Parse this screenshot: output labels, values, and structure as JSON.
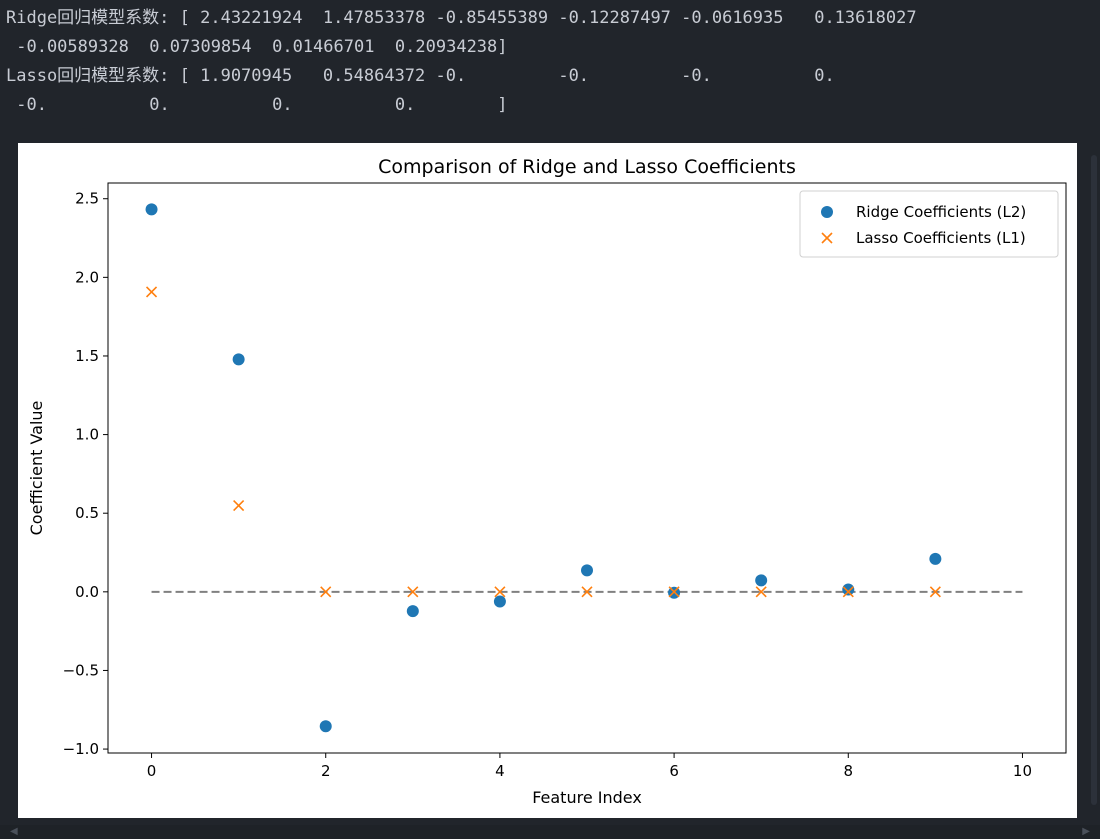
{
  "console": {
    "lines": [
      "Ridge回归模型系数: [ 2.43221924  1.47853378 -0.85455389 -0.12287497 -0.0616935   0.13618027",
      " -0.00589328  0.07309854  0.01466701  0.20934238]",
      "Lasso回归模型系数: [ 1.9070945   0.54864372 -0.         -0.         -0.          0.",
      " -0.          0.          0.          0.        ]"
    ]
  },
  "chart_data": {
    "type": "scatter",
    "title": "Comparison of Ridge and Lasso Coefficients",
    "xlabel": "Feature Index",
    "ylabel": "Coefficient Value",
    "xlim": [
      -0.5,
      10.5
    ],
    "ylim": [
      -1.025,
      2.6
    ],
    "xticks": [
      0,
      2,
      4,
      6,
      8,
      10
    ],
    "xtick_labels": [
      "0",
      "2",
      "4",
      "6",
      "8",
      "10"
    ],
    "yticks": [
      -1.0,
      -0.5,
      0.0,
      0.5,
      1.0,
      1.5,
      2.0,
      2.5
    ],
    "ytick_labels": [
      "−1.0",
      "−0.5",
      "0.0",
      "0.5",
      "1.0",
      "1.5",
      "2.0",
      "2.5"
    ],
    "grid": false,
    "legend_position": "top-right",
    "reference_line": {
      "y": 0,
      "x": [
        0,
        10
      ],
      "style": "dashed",
      "color": "#808080"
    },
    "series": [
      {
        "name": "Ridge Coefficients (L2)",
        "marker": "circle",
        "color": "#1f77b4",
        "x": [
          0,
          1,
          2,
          3,
          4,
          5,
          6,
          7,
          8,
          9
        ],
        "y": [
          2.43221924,
          1.47853378,
          -0.85455389,
          -0.12287497,
          -0.0616935,
          0.13618027,
          -0.00589328,
          0.07309854,
          0.01466701,
          0.20934238
        ]
      },
      {
        "name": "Lasso Coefficients (L1)",
        "marker": "x",
        "color": "#ff7f0e",
        "x": [
          0,
          1,
          2,
          3,
          4,
          5,
          6,
          7,
          8,
          9
        ],
        "y": [
          1.9070945,
          0.54864372,
          0,
          0,
          0,
          0,
          0,
          0,
          0,
          0
        ]
      }
    ]
  }
}
